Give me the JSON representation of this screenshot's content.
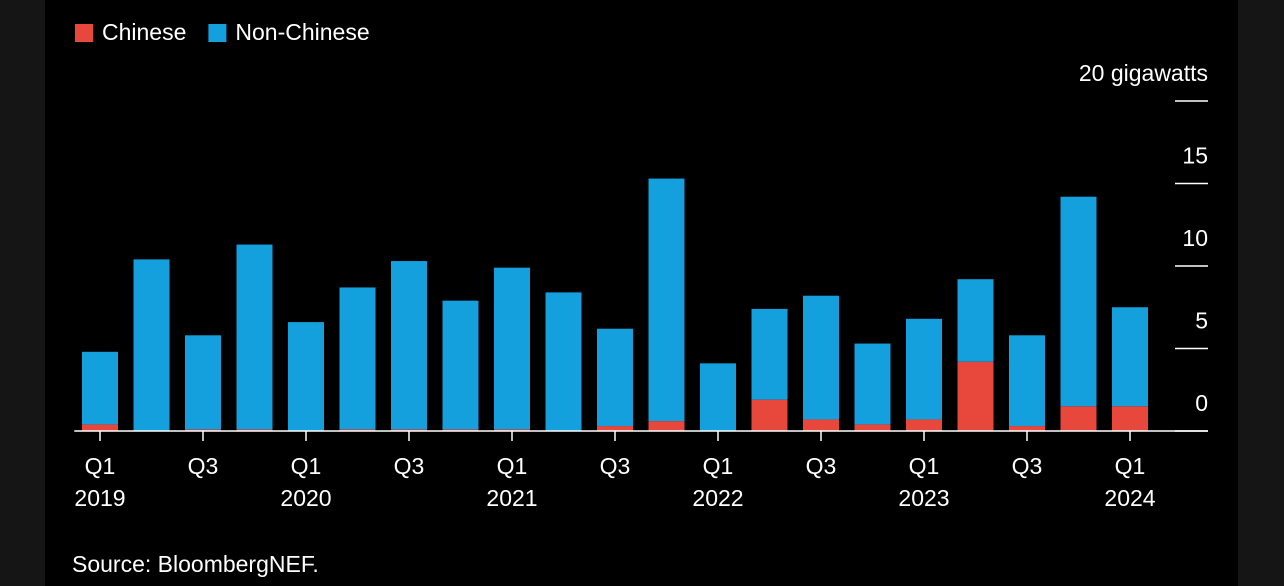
{
  "chart_data": {
    "type": "stacked_bar",
    "categories": [
      "Q1",
      null,
      "Q3",
      null,
      "Q1",
      null,
      "Q3",
      null,
      "Q1",
      null,
      "Q3",
      null,
      "Q1",
      null,
      "Q3",
      null,
      "Q1",
      null,
      "Q3",
      null,
      "Q1"
    ],
    "years": [
      "2019",
      null,
      null,
      null,
      "2020",
      null,
      null,
      null,
      "2021",
      null,
      null,
      null,
      "2022",
      null,
      null,
      null,
      "2023",
      null,
      null,
      null,
      "2024"
    ],
    "series": [
      {
        "name": "Chinese",
        "color": "#e8473b",
        "values": [
          0.4,
          0,
          0.1,
          0.1,
          0,
          0.1,
          0.1,
          0.1,
          0.1,
          0,
          0.3,
          0.6,
          0,
          1.9,
          0.7,
          0.4,
          0.7,
          4.2,
          0.3,
          1.5,
          1.5
        ]
      },
      {
        "name": "Non-Chinese",
        "color": "#13a0dc",
        "values": [
          4.4,
          10.4,
          5.7,
          11.2,
          6.6,
          8.6,
          10.2,
          7.8,
          9.8,
          8.4,
          5.9,
          14.7,
          4.1,
          5.5,
          7.5,
          4.9,
          6.1,
          5.0,
          5.5,
          12.7,
          6.0
        ]
      }
    ],
    "ylim": [
      0,
      20
    ],
    "yticks": [
      0,
      5,
      10,
      15,
      {
        "value": 20,
        "label": "20 gigawatts"
      }
    ],
    "source": "Source: BloombergNEF."
  }
}
